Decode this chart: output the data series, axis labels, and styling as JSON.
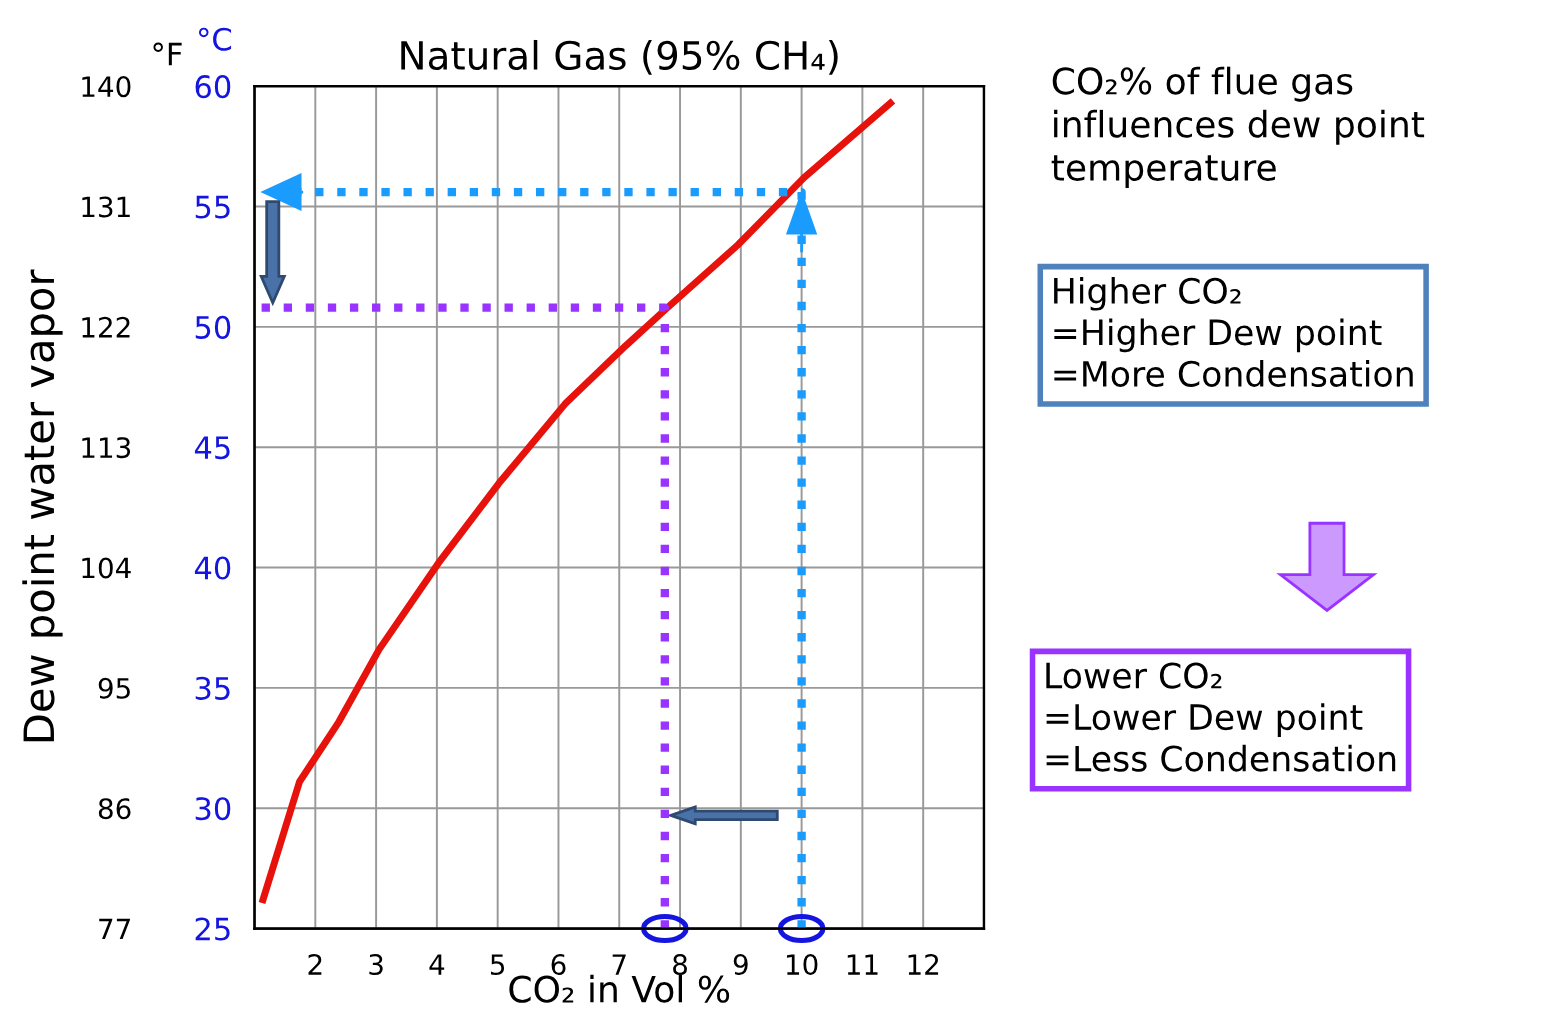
{
  "chart_data": {
    "type": "line",
    "title": "Natural Gas (95% CH₄)",
    "xlabel": "CO₂ in Vol %",
    "ylabel": "Dew point water vapor",
    "y2label": "°C",
    "xlim": [
      1,
      13
    ],
    "xticks": [
      2,
      3,
      4,
      5,
      6,
      7,
      8,
      9,
      10,
      11,
      12
    ],
    "ylim": [
      77,
      140
    ],
    "yticks": [
      77,
      86,
      95,
      104,
      113,
      122,
      131,
      140
    ],
    "y2lim": [
      25,
      60
    ],
    "y2ticks": [
      25,
      30,
      35,
      40,
      45,
      50,
      55,
      60
    ],
    "grid": true,
    "marker": "none",
    "series": [
      {
        "color": "#e8120c",
        "line_style": "solid",
        "axis": "y2",
        "x": [
          1.14,
          1.74,
          2.39,
          3.05,
          4.03,
          5.02,
          6.11,
          7.1,
          7.75,
          8.95,
          10.04,
          11.46
        ],
        "values": [
          26.2,
          31.1,
          33.6,
          36.6,
          40.2,
          43.5,
          46.8,
          49.2,
          50.7,
          53.4,
          56.2,
          59.3
        ]
      },
      {
        "color": "#1a9cff",
        "line_style": "dotted",
        "axis": "y2",
        "x": [
          10,
          10,
          1.1
        ],
        "values": [
          25,
          55.6,
          55.6
        ]
      },
      {
        "color": "#9933ff",
        "line_style": "dotted",
        "axis": "y2",
        "x": [
          7.75,
          7.75,
          1.1
        ],
        "values": [
          25,
          50.8,
          50.8
        ]
      }
    ],
    "annotations": [
      "°F",
      "CO₂% of flue gas\ninfluences dew point\ntemperature",
      "Higher CO₂\n=Higher Dew point\n=More Condensation",
      "Lower CO₂\n=Lower Dew point\n=Less Condensation"
    ]
  }
}
